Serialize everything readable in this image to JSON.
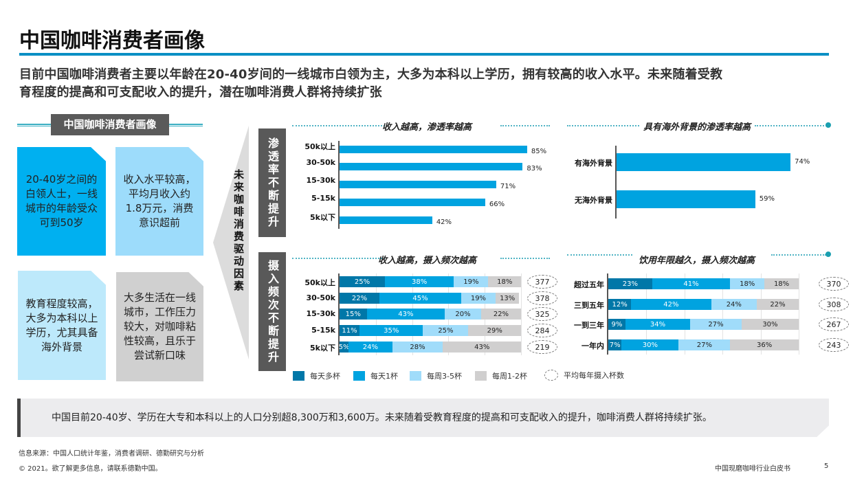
{
  "title": "中国咖啡消费者画像",
  "subtitle": [
    "目前中国咖啡消费者主要以年龄在20-40岁间的一线城市白领为主，大多为本科以上学历，拥有较高的收入水平。未来随着受教",
    "育程度的提高和可支配收入的提升，潜在咖啡消费人群将持续扩张"
  ],
  "profile": {
    "header": "中国咖啡消费者画像",
    "cards": [
      {
        "text": "20-40岁之间的白领人士，一线城市的年龄受众可到50岁",
        "color": "#00b0f0"
      },
      {
        "text": "收入水平较高，平均月收入约1.8万元，消费意识超前",
        "color": "#9ddcfb"
      },
      {
        "text": "教育程度较高，大多为本科以上学历，尤其具备海外背景",
        "color": "#bde9fb"
      },
      {
        "text": "大多生活在一线城市，工作压力较大，对咖啡粘性较高，且乐于尝试新口味",
        "color": "#d0d0d0"
      }
    ],
    "drivers_label": "未来咖啡消费驱动因素"
  },
  "row_labels": {
    "penetration": "渗透率不断提升",
    "frequency": "摄入频次不断提升"
  },
  "colors": {
    "accent": "#0a8fc4",
    "daily_multi": "#0077a8",
    "daily_one": "#00a3e0",
    "weekly_3_5": "#a0dcfa",
    "weekly_1_2": "#d0cfcf"
  },
  "chart_data": [
    {
      "type": "bar",
      "orientation": "horizontal",
      "title": "收入越高，渗透率越高",
      "categories": [
        "50k以上",
        "30-50k",
        "15-30k",
        "5-15k",
        "5k以下"
      ],
      "values": [
        85,
        83,
        71,
        66,
        42
      ],
      "labels": [
        "85%",
        "83%",
        "71%",
        "66%",
        "42%"
      ]
    },
    {
      "type": "bar",
      "orientation": "horizontal",
      "title": "具有海外背景的渗透率越高",
      "categories": [
        "有海外背景",
        "无海外背景"
      ],
      "values": [
        74,
        59
      ],
      "labels": [
        "74%",
        "59%"
      ]
    },
    {
      "type": "bar",
      "stacked": true,
      "orientation": "horizontal",
      "title": "收入越高，摄入频次越高",
      "categories": [
        "50k以上",
        "30-50k",
        "15-30k",
        "5-15k",
        "5k以下"
      ],
      "series": [
        {
          "name": "每天多杯",
          "values": [
            25,
            22,
            15,
            11,
            5
          ]
        },
        {
          "name": "每天1杯",
          "values": [
            38,
            45,
            43,
            35,
            24
          ]
        },
        {
          "name": "每周3-5杯",
          "values": [
            19,
            19,
            20,
            25,
            28
          ]
        },
        {
          "name": "每周1-2杯",
          "values": [
            18,
            13,
            22,
            29,
            43
          ]
        }
      ],
      "annual_cups": [
        "377",
        "378",
        "325",
        "284",
        "219"
      ]
    },
    {
      "type": "bar",
      "stacked": true,
      "orientation": "horizontal",
      "title": "饮用年限越久，摄入频次越高",
      "categories": [
        "超过五年",
        "三到五年",
        "一到三年",
        "一年内"
      ],
      "series": [
        {
          "name": "每天多杯",
          "values": [
            23,
            12,
            9,
            7
          ]
        },
        {
          "name": "每天1杯",
          "values": [
            41,
            42,
            34,
            30
          ]
        },
        {
          "name": "每周3-5杯",
          "values": [
            18,
            24,
            27,
            27
          ]
        },
        {
          "name": "每周1-2杯",
          "values": [
            18,
            22,
            30,
            36
          ]
        }
      ],
      "annual_cups": [
        "370",
        "308",
        "267",
        "243"
      ]
    }
  ],
  "legend": [
    "每天多杯",
    "每天1杯",
    "每周3-5杯",
    "每周1-2杯",
    "平均每年摄入杯数"
  ],
  "conclusion": "中国目前20-40岁、学历在大专和本科以上的人口分别超8,300万和3,600万。未来随着受教育程度的提高和可支配收入的提升，咖啡消费人群将持续扩张。",
  "footer": {
    "source": "信息来源：中国人口统计年鉴，消费者调研、德勤研究与分析",
    "copyright": "© 2021。欲了解更多信息，请联系德勤中国。",
    "doc_title": "中国现磨咖啡行业白皮书",
    "page": "5"
  }
}
